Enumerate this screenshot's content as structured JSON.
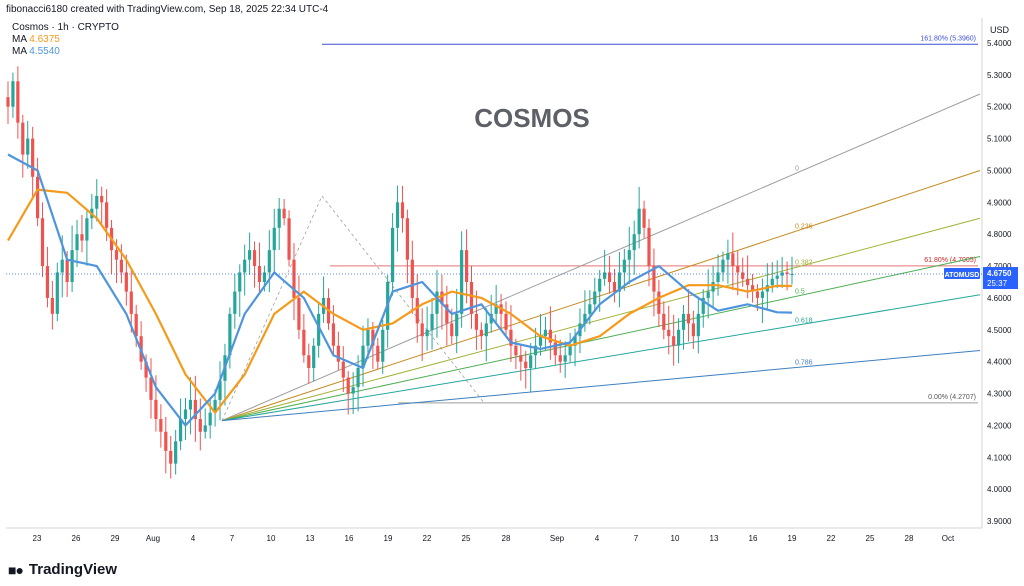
{
  "header": {
    "attribution": "fibonacci6180 created with TradingView.com, Sep 18, 2025 22:34 UTC-4"
  },
  "legend": {
    "symbol_line": "Cosmos · 1h · CRYPTO",
    "ma1_label": "MA",
    "ma1_value": "4.6375",
    "ma2_label": "MA",
    "ma2_value": "4.5540"
  },
  "footer": {
    "brand": "TradingView"
  },
  "colors": {
    "up": "#26a69a",
    "down": "#ef5350",
    "ma_fast": "#4f95dc",
    "ma_slow": "#f59a1b",
    "fib_top": "#3f51d6",
    "price_tag": "#2962ff"
  },
  "chart_data": {
    "type": "line",
    "title": "COSMOS",
    "currency": "USD",
    "ylim": [
      3.87,
      5.47
    ],
    "y_ticks": [
      "5.4000",
      "5.3000",
      "5.2000",
      "5.1000",
      "5.0000",
      "4.9000",
      "4.8000",
      "4.7000",
      "4.6000",
      "4.5000",
      "4.4000",
      "4.3000",
      "4.2000",
      "4.1000",
      "4.0000",
      "3.9000"
    ],
    "x_ticks": [
      "23",
      "26",
      "29",
      "Aug",
      "4",
      "7",
      "10",
      "13",
      "16",
      "19",
      "22",
      "25",
      "28",
      "Sep",
      "4",
      "7",
      "10",
      "13",
      "16",
      "19",
      "22",
      "25",
      "28",
      "Oct"
    ],
    "last_price": {
      "symbol": "ATOMUSD",
      "value": "4.6750",
      "countdown": "25:37"
    },
    "price_series": {
      "name": "ATOMUSD",
      "x_index": [
        0,
        1,
        2,
        3,
        4,
        5,
        6,
        7,
        8,
        9,
        10,
        11,
        12,
        13,
        14,
        15,
        16,
        17,
        18,
        19,
        20,
        21,
        22,
        23,
        24,
        25,
        26,
        27,
        28,
        29,
        30,
        31,
        32,
        33,
        34,
        35,
        36,
        37,
        38,
        39,
        40,
        41,
        42,
        43,
        44,
        45,
        46,
        47,
        48,
        49,
        50,
        51,
        52,
        53,
        54,
        55,
        56,
        57,
        58,
        59,
        60,
        61,
        62,
        63,
        64,
        65,
        66,
        67,
        68,
        69,
        70,
        71,
        72,
        73,
        74,
        75,
        76,
        77,
        78,
        79,
        80,
        81,
        82,
        83,
        84,
        85,
        86,
        87,
        88,
        89,
        90,
        91,
        92,
        93,
        94,
        95,
        96,
        97,
        98,
        99,
        100,
        101,
        102,
        103,
        104,
        105,
        106,
        107,
        108,
        109,
        110,
        111,
        112,
        113,
        114,
        115,
        116,
        117,
        118,
        119,
        120,
        121,
        122,
        123,
        124,
        125,
        126,
        127,
        128,
        129,
        130,
        131,
        132,
        133,
        134,
        135,
        136,
        137,
        138,
        139,
        140,
        141,
        142,
        143,
        144,
        145,
        146,
        147,
        148,
        149,
        150,
        151,
        152,
        153,
        154,
        155,
        156,
        157,
        158,
        159
      ],
      "close": [
        5.2,
        5.28,
        5.15,
        5.05,
        5.1,
        4.98,
        4.85,
        4.7,
        4.6,
        4.55,
        4.68,
        4.72,
        4.65,
        4.75,
        4.8,
        4.78,
        4.85,
        4.88,
        4.92,
        4.9,
        4.82,
        4.75,
        4.72,
        4.68,
        4.62,
        4.55,
        4.48,
        4.4,
        4.35,
        4.28,
        4.22,
        4.18,
        4.12,
        4.08,
        4.15,
        4.22,
        4.25,
        4.28,
        4.22,
        4.18,
        4.2,
        4.24,
        4.28,
        4.34,
        4.42,
        4.55,
        4.62,
        4.68,
        4.72,
        4.75,
        4.7,
        4.65,
        4.68,
        4.75,
        4.82,
        4.88,
        4.85,
        4.72,
        4.6,
        4.5,
        4.42,
        4.38,
        4.45,
        4.55,
        4.6,
        4.52,
        4.45,
        4.4,
        4.35,
        4.3,
        4.32,
        4.38,
        4.45,
        4.5,
        4.45,
        4.4,
        4.5,
        4.65,
        4.82,
        4.9,
        4.85,
        4.72,
        4.6,
        4.52,
        4.48,
        4.5,
        4.55,
        4.62,
        4.58,
        4.52,
        4.48,
        4.55,
        4.75,
        4.65,
        4.55,
        4.5,
        4.48,
        4.52,
        4.55,
        4.58,
        4.55,
        4.5,
        4.45,
        4.42,
        4.4,
        4.38,
        4.42,
        4.45,
        4.48,
        4.5,
        4.46,
        4.42,
        4.4,
        4.42,
        4.45,
        4.48,
        4.52,
        4.55,
        4.58,
        4.62,
        4.66,
        4.68,
        4.65,
        4.62,
        4.68,
        4.72,
        4.75,
        4.8,
        4.88,
        4.82,
        4.7,
        4.62,
        4.55,
        4.5,
        4.48,
        4.45,
        4.5,
        4.55,
        4.52,
        4.48,
        4.55,
        4.6,
        4.62,
        4.65,
        4.68,
        4.72,
        4.74,
        4.7,
        4.68,
        4.66,
        4.64,
        4.62,
        4.6,
        4.62,
        4.64,
        4.66,
        4.67,
        4.68,
        4.675,
        4.675
      ]
    },
    "ma_fast": {
      "name": "MA 4.5540",
      "x_index": [
        0,
        6,
        12,
        18,
        24,
        30,
        36,
        42,
        48,
        54,
        60,
        66,
        72,
        78,
        84,
        90,
        96,
        102,
        108,
        114,
        120,
        126,
        132,
        138,
        144,
        150,
        156,
        159
      ],
      "values": [
        5.05,
        5.0,
        4.72,
        4.7,
        4.55,
        4.32,
        4.2,
        4.3,
        4.55,
        4.68,
        4.6,
        4.42,
        4.38,
        4.62,
        4.65,
        4.55,
        4.58,
        4.46,
        4.44,
        4.46,
        4.58,
        4.65,
        4.7,
        4.62,
        4.56,
        4.58,
        4.555,
        4.554
      ]
    },
    "ma_slow": {
      "name": "MA 4.6375",
      "x_index": [
        0,
        6,
        12,
        18,
        24,
        30,
        36,
        42,
        48,
        54,
        60,
        66,
        72,
        78,
        84,
        90,
        96,
        102,
        108,
        114,
        120,
        126,
        132,
        138,
        144,
        150,
        156,
        159
      ],
      "values": [
        4.78,
        4.94,
        4.93,
        4.85,
        4.72,
        4.55,
        4.36,
        4.24,
        4.36,
        4.55,
        4.62,
        4.55,
        4.5,
        4.52,
        4.58,
        4.62,
        4.6,
        4.55,
        4.48,
        4.45,
        4.48,
        4.55,
        4.6,
        4.64,
        4.64,
        4.62,
        4.638,
        4.6375
      ]
    },
    "fib_levels": [
      {
        "ratio": "161.80%",
        "price": 5.396,
        "label": "161.80% (5.3960)"
      },
      {
        "ratio": "61.80%",
        "price": 4.7005,
        "label": "61.80% (4.7005)"
      },
      {
        "ratio": "0.00%",
        "price": 4.2707,
        "label": "0.00% (4.2707)"
      }
    ],
    "fib_fan": {
      "origin_price": 4.215,
      "lines": [
        {
          "label": "0",
          "end_price": 5.24,
          "color": "#9e9e9e"
        },
        {
          "label": "0.236",
          "end_price": 5.0,
          "color": "#c58a1e"
        },
        {
          "label": "0.382",
          "end_price": 4.85,
          "color": "#a3b33a"
        },
        {
          "label": "0.5",
          "end_price": 4.73,
          "color": "#4caf50"
        },
        {
          "label": "0.618",
          "end_price": 4.61,
          "color": "#26a69a"
        },
        {
          "label": "0.786",
          "end_price": 4.435,
          "color": "#3f7fbf"
        }
      ]
    }
  }
}
